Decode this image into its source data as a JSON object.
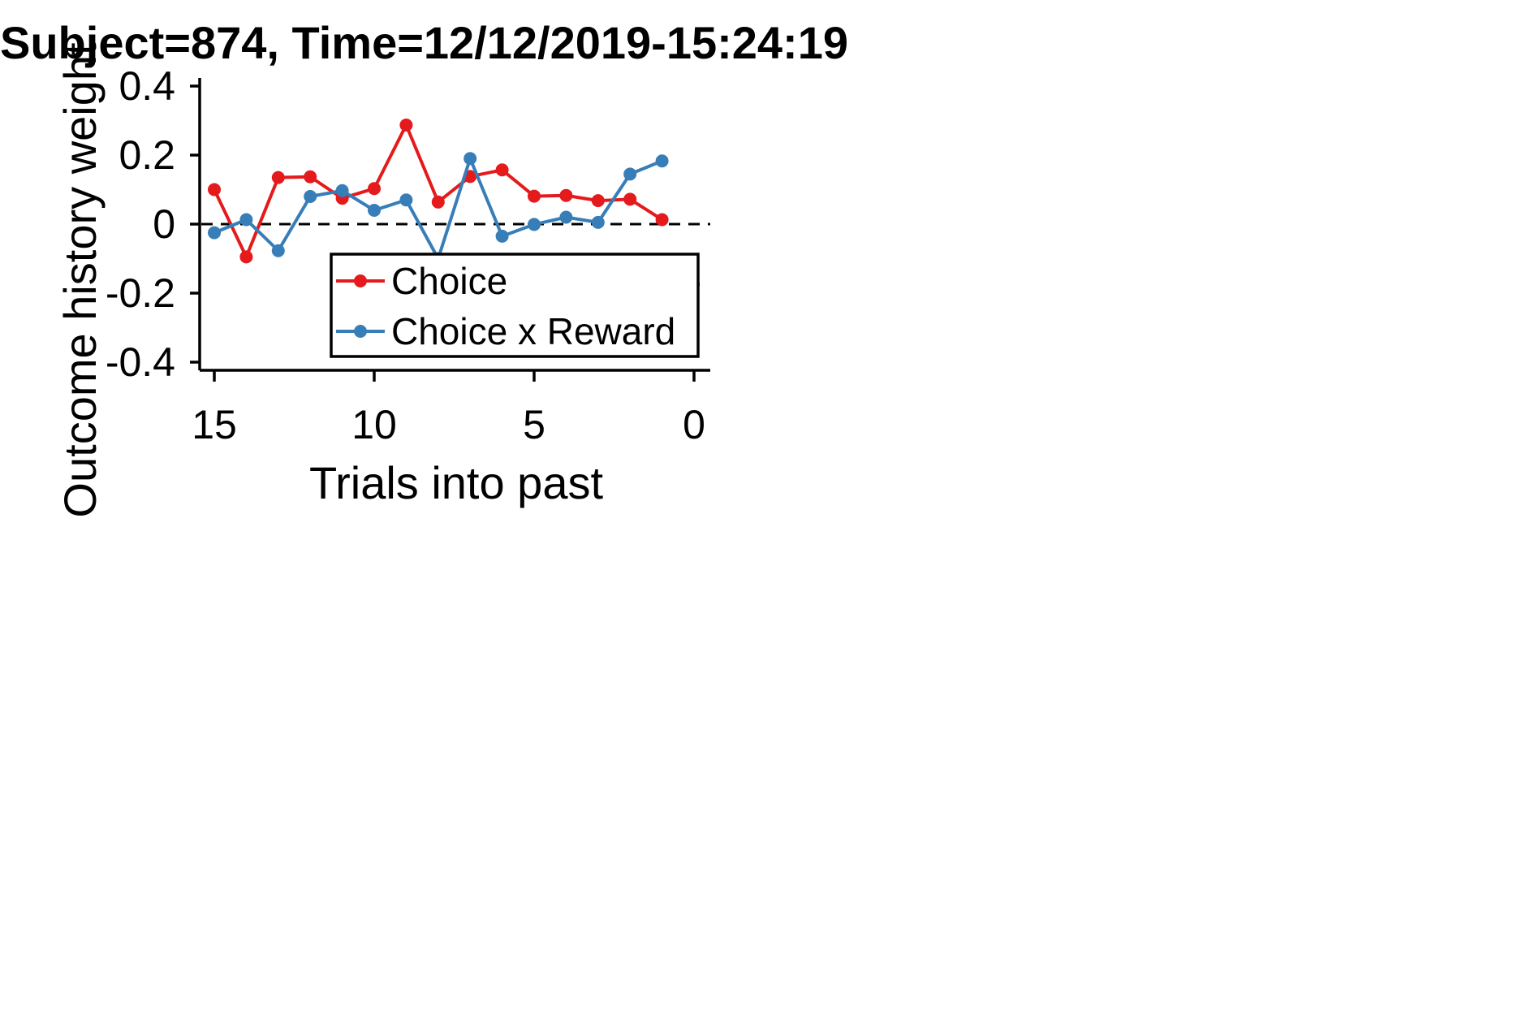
{
  "chart_data": {
    "type": "line",
    "title": "Subject=874, Time=12/12/2019-15:24:19",
    "xlabel": "Trials into past",
    "ylabel": "Outcome history weight",
    "xlim": [
      15.5,
      0
    ],
    "ylim": [
      -0.42,
      0.42
    ],
    "xticks": [
      15,
      10,
      5,
      0
    ],
    "xtick_labels": [
      "15",
      "10",
      "5",
      "0"
    ],
    "yticks": [
      0.4,
      0.2,
      0,
      -0.2,
      -0.4
    ],
    "ytick_labels": [
      "0.4",
      "0.2",
      "0",
      "-0.2",
      "-0.4"
    ],
    "reference_line": {
      "y": 0,
      "style": "dashed"
    },
    "legend": {
      "position": "lower-right",
      "entries": [
        "Choice",
        "Choice x Reward"
      ]
    },
    "grid": false,
    "series": [
      {
        "name": "Choice",
        "color": "#e41a1c",
        "x": [
          15,
          14,
          13,
          12,
          11,
          10,
          9,
          8,
          7,
          6,
          5,
          4,
          3,
          2,
          1
        ],
        "y": [
          0.1,
          -0.095,
          0.135,
          0.137,
          0.075,
          0.103,
          0.287,
          0.064,
          0.138,
          0.157,
          0.081,
          0.083,
          0.068,
          0.072,
          0.013
        ]
      },
      {
        "name": "Choice x Reward",
        "color": "#377eb8",
        "x": [
          15,
          14,
          13,
          12,
          11,
          10,
          9,
          8,
          7,
          6,
          5,
          4,
          3,
          2,
          1
        ],
        "y": [
          -0.025,
          0.013,
          -0.077,
          0.08,
          0.097,
          0.04,
          0.07,
          -0.1,
          0.19,
          -0.035,
          -0.001,
          0.02,
          0.005,
          0.145,
          0.183
        ]
      }
    ],
    "extra_point": {
      "x": 0,
      "y": -0.175,
      "color": "#000000"
    }
  }
}
